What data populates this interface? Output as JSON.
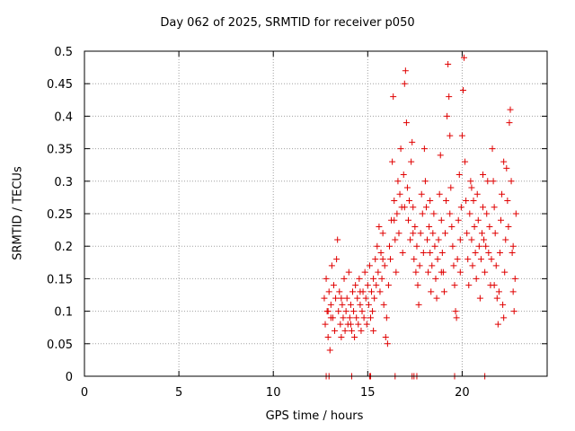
{
  "chart_data": {
    "type": "scatter",
    "title": "Day 062 of 2025, SRMTID for receiver p050",
    "xlabel": "GPS time / hours",
    "ylabel": "SRMTID / TECUs",
    "xlim": [
      0,
      24.5
    ],
    "ylim": [
      0,
      0.5
    ],
    "xticks": [
      0,
      5,
      10,
      15,
      20
    ],
    "yticks": [
      0,
      0.05,
      0.1,
      0.15,
      0.2,
      0.25,
      0.3,
      0.35,
      0.4,
      0.45,
      0.5
    ],
    "grid": true,
    "marker": "+",
    "color": "#e00000",
    "series": [
      {
        "name": "SRMTID",
        "points": [
          [
            12.7,
            0.12
          ],
          [
            12.75,
            0.08
          ],
          [
            12.8,
            0.15
          ],
          [
            12.85,
            0.1
          ],
          [
            12.9,
            0.06
          ],
          [
            12.95,
            0.13
          ],
          [
            13.0,
            0.04
          ],
          [
            13.05,
            0.11
          ],
          [
            13.1,
            0.17
          ],
          [
            13.15,
            0.09
          ],
          [
            13.2,
            0.14
          ],
          [
            13.25,
            0.07
          ],
          [
            13.3,
            0.12
          ],
          [
            13.35,
            0.18
          ],
          [
            13.4,
            0.21
          ],
          [
            13.45,
            0.1
          ],
          [
            13.5,
            0.13
          ],
          [
            13.55,
            0.08
          ],
          [
            13.6,
            0.06
          ],
          [
            13.65,
            0.11
          ],
          [
            13.7,
            0.09
          ],
          [
            13.75,
            0.15
          ],
          [
            13.8,
            0.07
          ],
          [
            13.85,
            0.1
          ],
          [
            13.9,
            0.12
          ],
          [
            13.95,
            0.08
          ],
          [
            14.0,
            0.16
          ],
          [
            14.05,
            0.09
          ],
          [
            14.1,
            0.11
          ],
          [
            14.15,
            0.07
          ],
          [
            14.2,
            0.13
          ],
          [
            14.25,
            0.1
          ],
          [
            14.3,
            0.06
          ],
          [
            14.35,
            0.14
          ],
          [
            14.4,
            0.09
          ],
          [
            14.45,
            0.12
          ],
          [
            14.5,
            0.08
          ],
          [
            14.55,
            0.15
          ],
          [
            14.6,
            0.11
          ],
          [
            14.65,
            0.07
          ],
          [
            14.7,
            0.1
          ],
          [
            14.75,
            0.13
          ],
          [
            14.8,
            0.09
          ],
          [
            14.85,
            0.16
          ],
          [
            14.9,
            0.12
          ],
          [
            14.95,
            0.08
          ],
          [
            15.0,
            0.14
          ],
          [
            15.05,
            0.11
          ],
          [
            15.1,
            0.17
          ],
          [
            15.15,
            0.09
          ],
          [
            15.2,
            0.13
          ],
          [
            15.25,
            0.1
          ],
          [
            15.3,
            0.15
          ],
          [
            15.35,
            0.12
          ],
          [
            15.4,
            0.18
          ],
          [
            15.45,
            0.14
          ],
          [
            15.5,
            0.2
          ],
          [
            15.55,
            0.16
          ],
          [
            15.6,
            0.23
          ],
          [
            15.65,
            0.13
          ],
          [
            15.7,
            0.19
          ],
          [
            15.75,
            0.15
          ],
          [
            15.8,
            0.22
          ],
          [
            15.85,
            0.11
          ],
          [
            15.9,
            0.17
          ],
          [
            15.95,
            0.06
          ],
          [
            16.0,
            0.09
          ],
          [
            16.05,
            0.05
          ],
          [
            16.1,
            0.14
          ],
          [
            16.15,
            0.2
          ],
          [
            16.2,
            0.18
          ],
          [
            16.25,
            0.24
          ],
          [
            16.3,
            0.33
          ],
          [
            16.35,
            0.43
          ],
          [
            16.4,
            0.27
          ],
          [
            16.45,
            0.21
          ],
          [
            16.5,
            0.16
          ],
          [
            16.55,
            0.25
          ],
          [
            16.6,
            0.3
          ],
          [
            16.65,
            0.22
          ],
          [
            16.7,
            0.28
          ],
          [
            16.75,
            0.35
          ],
          [
            16.8,
            0.26
          ],
          [
            16.85,
            0.19
          ],
          [
            16.9,
            0.31
          ],
          [
            16.95,
            0.45
          ],
          [
            17.0,
            0.47
          ],
          [
            17.05,
            0.39
          ],
          [
            17.1,
            0.29
          ],
          [
            17.15,
            0.24
          ],
          [
            17.2,
            0.27
          ],
          [
            17.25,
            0.21
          ],
          [
            17.3,
            0.33
          ],
          [
            17.35,
            0.36
          ],
          [
            17.4,
            0.26
          ],
          [
            17.45,
            0.18
          ],
          [
            17.5,
            0.23
          ],
          [
            17.55,
            0.16
          ],
          [
            17.6,
            0.2
          ],
          [
            17.65,
            0.14
          ],
          [
            17.7,
            0.11
          ],
          [
            17.75,
            0.17
          ],
          [
            17.8,
            0.22
          ],
          [
            17.85,
            0.28
          ],
          [
            17.9,
            0.25
          ],
          [
            17.95,
            0.19
          ],
          [
            18.0,
            0.35
          ],
          [
            18.05,
            0.3
          ],
          [
            18.1,
            0.26
          ],
          [
            18.15,
            0.21
          ],
          [
            18.2,
            0.16
          ],
          [
            18.25,
            0.23
          ],
          [
            18.3,
            0.19
          ],
          [
            18.35,
            0.13
          ],
          [
            18.4,
            0.17
          ],
          [
            18.45,
            0.22
          ],
          [
            18.5,
            0.25
          ],
          [
            18.55,
            0.2
          ],
          [
            18.6,
            0.15
          ],
          [
            18.65,
            0.12
          ],
          [
            18.7,
            0.18
          ],
          [
            18.75,
            0.21
          ],
          [
            18.8,
            0.28
          ],
          [
            18.85,
            0.34
          ],
          [
            18.9,
            0.24
          ],
          [
            18.95,
            0.19
          ],
          [
            19.0,
            0.16
          ],
          [
            19.05,
            0.13
          ],
          [
            19.1,
            0.22
          ],
          [
            19.15,
            0.27
          ],
          [
            19.2,
            0.4
          ],
          [
            19.25,
            0.48
          ],
          [
            19.3,
            0.43
          ],
          [
            19.35,
            0.37
          ],
          [
            19.4,
            0.29
          ],
          [
            19.45,
            0.23
          ],
          [
            19.5,
            0.2
          ],
          [
            19.55,
            0.17
          ],
          [
            19.6,
            0.14
          ],
          [
            19.65,
            0.1
          ],
          [
            19.7,
            0.09
          ],
          [
            19.75,
            0.18
          ],
          [
            19.8,
            0.24
          ],
          [
            19.85,
            0.31
          ],
          [
            19.9,
            0.21
          ],
          [
            19.95,
            0.26
          ],
          [
            20.0,
            0.37
          ],
          [
            20.05,
            0.44
          ],
          [
            20.1,
            0.49
          ],
          [
            20.15,
            0.33
          ],
          [
            20.2,
            0.27
          ],
          [
            20.25,
            0.22
          ],
          [
            20.3,
            0.18
          ],
          [
            20.35,
            0.14
          ],
          [
            20.4,
            0.25
          ],
          [
            20.45,
            0.3
          ],
          [
            20.5,
            0.21
          ],
          [
            20.55,
            0.17
          ],
          [
            20.6,
            0.27
          ],
          [
            20.65,
            0.23
          ],
          [
            20.7,
            0.19
          ],
          [
            20.75,
            0.15
          ],
          [
            20.8,
            0.28
          ],
          [
            20.85,
            0.24
          ],
          [
            20.9,
            0.2
          ],
          [
            20.95,
            0.12
          ],
          [
            21.0,
            0.18
          ],
          [
            21.05,
            0.22
          ],
          [
            21.1,
            0.26
          ],
          [
            21.15,
            0.21
          ],
          [
            21.2,
            0.16
          ],
          [
            21.25,
            0.2
          ],
          [
            21.3,
            0.25
          ],
          [
            21.35,
            0.3
          ],
          [
            21.4,
            0.19
          ],
          [
            21.45,
            0.23
          ],
          [
            21.5,
            0.14
          ],
          [
            21.55,
            0.18
          ],
          [
            21.6,
            0.35
          ],
          [
            21.65,
            0.3
          ],
          [
            21.7,
            0.26
          ],
          [
            21.75,
            0.22
          ],
          [
            21.8,
            0.17
          ],
          [
            21.85,
            0.12
          ],
          [
            21.9,
            0.08
          ],
          [
            21.95,
            0.13
          ],
          [
            22.0,
            0.19
          ],
          [
            22.05,
            0.24
          ],
          [
            22.1,
            0.28
          ],
          [
            22.15,
            0.11
          ],
          [
            22.2,
            0.09
          ],
          [
            22.25,
            0.16
          ],
          [
            22.3,
            0.21
          ],
          [
            22.35,
            0.32
          ],
          [
            22.4,
            0.27
          ],
          [
            22.45,
            0.23
          ],
          [
            22.5,
            0.39
          ],
          [
            22.55,
            0.41
          ],
          [
            22.6,
            0.3
          ],
          [
            22.65,
            0.19
          ],
          [
            22.7,
            0.13
          ],
          [
            22.75,
            0.1
          ],
          [
            22.8,
            0.15
          ],
          [
            22.85,
            0.25
          ],
          [
            12.9,
            0.1
          ],
          [
            13.05,
            0.09
          ],
          [
            13.6,
            0.12
          ],
          [
            14.1,
            0.08
          ],
          [
            14.6,
            0.13
          ],
          [
            15.3,
            0.07
          ],
          [
            15.8,
            0.18
          ],
          [
            16.4,
            0.24
          ],
          [
            16.95,
            0.26
          ],
          [
            17.4,
            0.22
          ],
          [
            18.3,
            0.27
          ],
          [
            18.9,
            0.16
          ],
          [
            19.35,
            0.25
          ],
          [
            19.9,
            0.16
          ],
          [
            20.5,
            0.29
          ],
          [
            21.1,
            0.31
          ],
          [
            21.7,
            0.14
          ],
          [
            22.2,
            0.33
          ],
          [
            22.7,
            0.2
          ],
          [
            12.8,
            0.0
          ],
          [
            12.95,
            0.0
          ],
          [
            14.15,
            0.0
          ],
          [
            15.1,
            0.0
          ],
          [
            15.15,
            0.0
          ],
          [
            16.45,
            0.0
          ],
          [
            17.35,
            0.0
          ],
          [
            17.45,
            0.0
          ],
          [
            17.6,
            0.0
          ],
          [
            19.6,
            0.0
          ],
          [
            21.2,
            0.0
          ]
        ]
      }
    ]
  }
}
